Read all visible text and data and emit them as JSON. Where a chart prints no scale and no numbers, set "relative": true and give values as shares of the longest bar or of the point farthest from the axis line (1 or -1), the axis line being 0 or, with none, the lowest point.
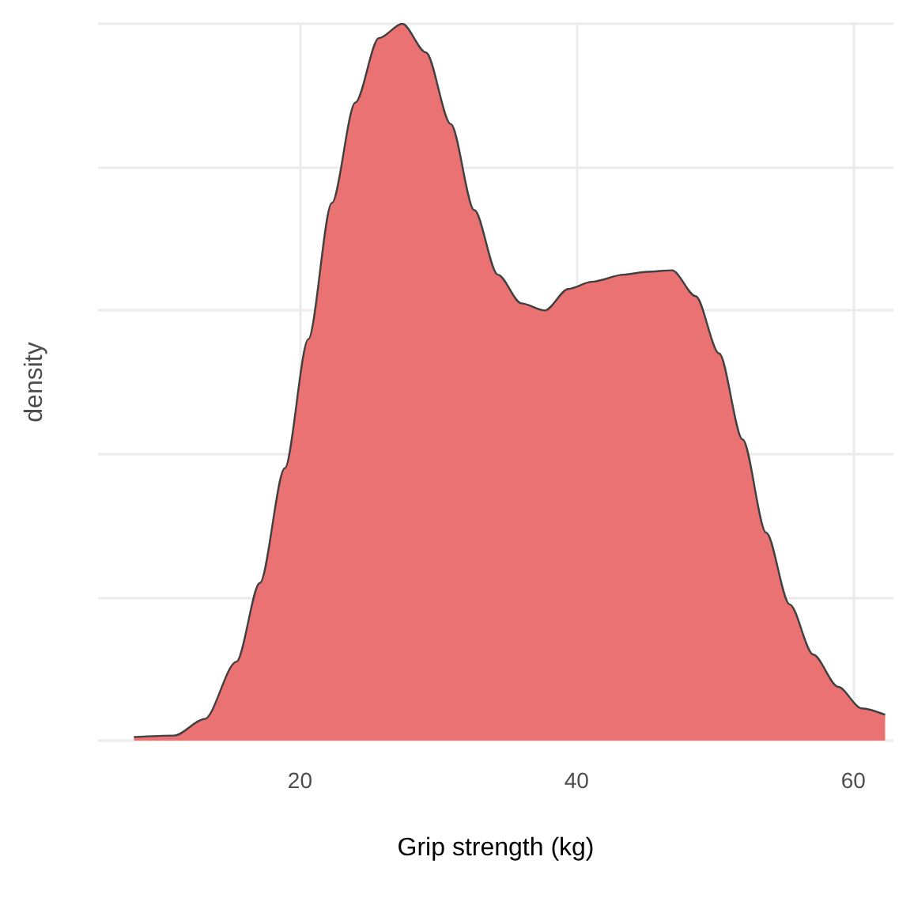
{
  "chart_data": {
    "type": "area",
    "xlabel": "Grip strength (kg)",
    "ylabel": "density",
    "relative": true,
    "xlim": [
      5.4,
      62.9
    ],
    "xticks": [
      20,
      40,
      60
    ],
    "grid": true,
    "series": [
      {
        "color": "#eb7272",
        "x": [
          8.0,
          10.9,
          13.1,
          15.4,
          17.1,
          18.9,
          20.6,
          22.3,
          24.0,
          25.7,
          27.4,
          29.1,
          30.9,
          32.6,
          34.3,
          36.0,
          37.7,
          39.4,
          41.1,
          43.4,
          45.1,
          46.9,
          48.6,
          50.3,
          52.0,
          53.7,
          55.4,
          57.1,
          58.9,
          60.6,
          62.3
        ],
        "values": [
          0.005,
          0.007,
          0.03,
          0.11,
          0.22,
          0.38,
          0.56,
          0.75,
          0.89,
          0.98,
          1.0,
          0.96,
          0.86,
          0.74,
          0.65,
          0.61,
          0.6,
          0.63,
          0.64,
          0.65,
          0.654,
          0.656,
          0.62,
          0.54,
          0.42,
          0.29,
          0.19,
          0.12,
          0.075,
          0.045,
          0.036
        ]
      }
    ]
  }
}
